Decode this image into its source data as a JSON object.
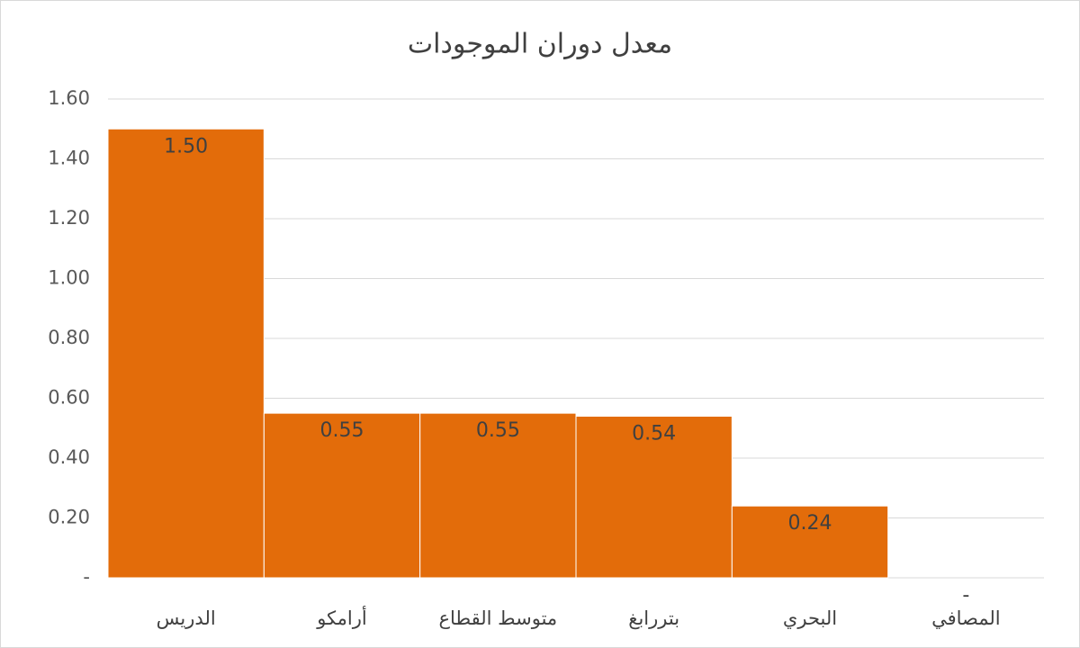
{
  "chart_data": {
    "type": "bar",
    "title": "معدل دوران الموجودات",
    "categories": [
      "الدريس",
      "أرامكو",
      "متوسط القطاع",
      "بتررابغ",
      "البحري",
      "المصافي"
    ],
    "values": [
      1.5,
      0.55,
      0.55,
      0.54,
      0.24,
      0
    ],
    "value_labels": [
      "1.50",
      "0.55",
      "0.55",
      "0.54",
      "0.24",
      "-"
    ],
    "color": "#e36c0a",
    "ylim": [
      0,
      1.6
    ],
    "yticks": [
      {
        "value": 0,
        "label": "-"
      },
      {
        "value": 0.2,
        "label": "0.20"
      },
      {
        "value": 0.4,
        "label": "0.40"
      },
      {
        "value": 0.6,
        "label": "0.60"
      },
      {
        "value": 0.8,
        "label": "0.80"
      },
      {
        "value": 1.0,
        "label": "1.00"
      },
      {
        "value": 1.2,
        "label": "1.20"
      },
      {
        "value": 1.4,
        "label": "1.40"
      },
      {
        "value": 1.6,
        "label": "1.60"
      }
    ],
    "grid": true
  }
}
